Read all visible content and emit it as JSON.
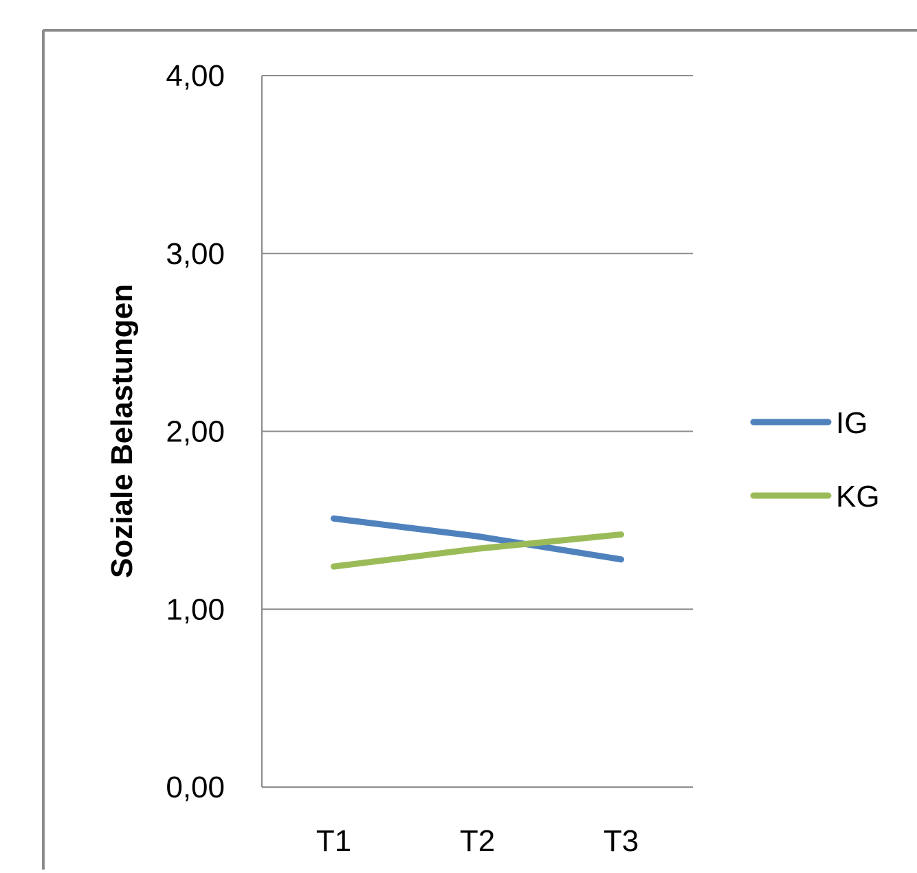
{
  "chart_data": {
    "type": "line",
    "title": "",
    "xlabel": "",
    "ylabel": "Soziale Belastungen",
    "categories": [
      "T1",
      "T2",
      "T3"
    ],
    "ylim": [
      0,
      4
    ],
    "y_ticks": [
      0,
      1,
      2,
      3,
      4
    ],
    "y_tick_labels": [
      "0,00",
      "1,00",
      "2,00",
      "3,00",
      "4,00"
    ],
    "grid": true,
    "legend_position": "right",
    "series": [
      {
        "name": "IG",
        "values": [
          1.51,
          1.41,
          1.28
        ],
        "color": "#4F81BD"
      },
      {
        "name": "KG",
        "values": [
          1.24,
          1.34,
          1.42
        ],
        "color": "#9BBB59"
      }
    ]
  }
}
